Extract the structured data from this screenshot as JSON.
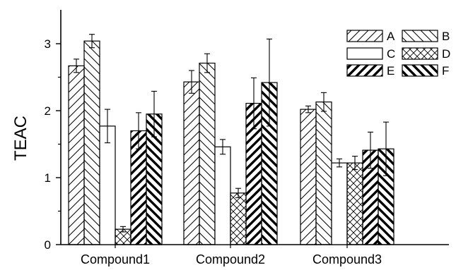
{
  "chart_data": {
    "type": "bar",
    "categories": [
      "Compound1",
      "Compound2",
      "Compound3"
    ],
    "ylabel": "TEAC",
    "xlabel": "",
    "ylim": [
      0,
      3.5
    ],
    "yticks": [
      0,
      1,
      2,
      3
    ],
    "grid": false,
    "legend_position": "top-right",
    "series": [
      {
        "name": "A",
        "pattern": "hatch-forward",
        "values": [
          2.67,
          2.43,
          2.02
        ],
        "errors": [
          0.1,
          0.17,
          0.05
        ]
      },
      {
        "name": "B",
        "pattern": "hatch-backward",
        "values": [
          3.04,
          2.71,
          2.13
        ],
        "errors": [
          0.1,
          0.14,
          0.14
        ]
      },
      {
        "name": "C",
        "pattern": "blank",
        "values": [
          1.77,
          1.46,
          1.22
        ],
        "errors": [
          0.25,
          0.11,
          0.06
        ]
      },
      {
        "name": "D",
        "pattern": "crosshatch",
        "values": [
          0.23,
          0.77,
          1.22
        ],
        "errors": [
          0.04,
          0.07,
          0.1
        ]
      },
      {
        "name": "E",
        "pattern": "thick-forward",
        "values": [
          1.7,
          2.11,
          1.41
        ],
        "errors": [
          0.27,
          0.38,
          0.27
        ]
      },
      {
        "name": "F",
        "pattern": "thick-backward",
        "values": [
          1.95,
          2.42,
          1.43
        ],
        "errors": [
          0.34,
          0.65,
          0.4
        ]
      }
    ]
  }
}
